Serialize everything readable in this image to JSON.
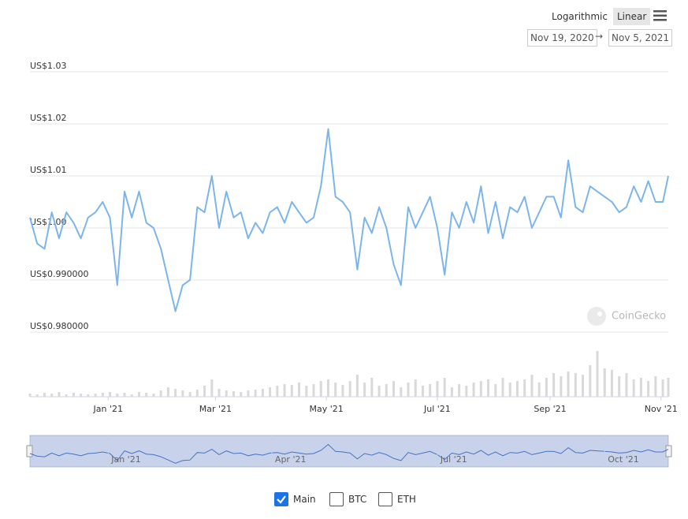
{
  "controls": {
    "scale_options": [
      "Logarithmic",
      "Linear"
    ]
  },
  "range": {
    "from": "Nov 19, 2020",
    "separator": "→",
    "to": "Nov 5, 2021"
  },
  "watermark": "CoinGecko",
  "toggles": [
    {
      "label": "Main",
      "checked": true
    },
    {
      "label": "BTC",
      "checked": false
    },
    {
      "label": "ETH",
      "checked": false
    }
  ],
  "chart_data": {
    "type": "line",
    "log_scale": false,
    "grid": true,
    "color": "#7cb5ec",
    "volume_color": "#d9d9d9",
    "xlim": [
      "2020-11-19",
      "2021-11-05"
    ],
    "ylim": [
      0.98,
      1.03
    ],
    "yticks": [
      {
        "value": 0.98,
        "label": "US$0.980000"
      },
      {
        "value": 0.99,
        "label": "US$0.990000"
      },
      {
        "value": 1.0,
        "label": "US$1.00"
      },
      {
        "value": 1.01,
        "label": "US$1.01"
      },
      {
        "value": 1.02,
        "label": "US$1.02"
      },
      {
        "value": 1.03,
        "label": "US$1.03"
      }
    ],
    "xticks": [
      {
        "value": "2021-01-01",
        "label": "Jan '21"
      },
      {
        "value": "2021-03-01",
        "label": "Mar '21"
      },
      {
        "value": "2021-05-01",
        "label": "May '21"
      },
      {
        "value": "2021-07-01",
        "label": "Jul '21"
      },
      {
        "value": "2021-09-01",
        "label": "Sep '21"
      },
      {
        "value": "2021-11-01",
        "label": "Nov '21"
      }
    ],
    "navigator_ticks": [
      {
        "value": "2021-01-01",
        "label": "Jan '21"
      },
      {
        "value": "2021-04-01",
        "label": "Apr '21"
      },
      {
        "value": "2021-07-01",
        "label": "Jul '21"
      },
      {
        "value": "2021-10-01",
        "label": "Oct '21"
      }
    ],
    "x": [
      "2020-11-19",
      "2020-11-23",
      "2020-11-27",
      "2020-12-01",
      "2020-12-05",
      "2020-12-09",
      "2020-12-13",
      "2020-12-17",
      "2020-12-21",
      "2020-12-25",
      "2020-12-29",
      "2021-01-02",
      "2021-01-06",
      "2021-01-10",
      "2021-01-14",
      "2021-01-18",
      "2021-01-22",
      "2021-01-26",
      "2021-01-30",
      "2021-02-03",
      "2021-02-07",
      "2021-02-11",
      "2021-02-15",
      "2021-02-19",
      "2021-02-23",
      "2021-02-27",
      "2021-03-03",
      "2021-03-07",
      "2021-03-11",
      "2021-03-15",
      "2021-03-19",
      "2021-03-23",
      "2021-03-27",
      "2021-03-31",
      "2021-04-04",
      "2021-04-08",
      "2021-04-12",
      "2021-04-16",
      "2021-04-20",
      "2021-04-24",
      "2021-04-28",
      "2021-05-02",
      "2021-05-06",
      "2021-05-10",
      "2021-05-14",
      "2021-05-18",
      "2021-05-22",
      "2021-05-26",
      "2021-05-30",
      "2021-06-03",
      "2021-06-07",
      "2021-06-11",
      "2021-06-15",
      "2021-06-19",
      "2021-06-23",
      "2021-06-27",
      "2021-07-01",
      "2021-07-05",
      "2021-07-09",
      "2021-07-13",
      "2021-07-17",
      "2021-07-21",
      "2021-07-25",
      "2021-07-29",
      "2021-08-02",
      "2021-08-06",
      "2021-08-10",
      "2021-08-14",
      "2021-08-18",
      "2021-08-22",
      "2021-08-26",
      "2021-08-30",
      "2021-09-03",
      "2021-09-07",
      "2021-09-11",
      "2021-09-15",
      "2021-09-19",
      "2021-09-23",
      "2021-09-27",
      "2021-10-01",
      "2021-10-05",
      "2021-10-09",
      "2021-10-13",
      "2021-10-17",
      "2021-10-21",
      "2021-10-25",
      "2021-10-29",
      "2021-11-02",
      "2021-11-05"
    ],
    "values": [
      1.002,
      0.997,
      0.996,
      1.003,
      0.998,
      1.003,
      1.001,
      0.998,
      1.002,
      1.003,
      1.005,
      1.002,
      0.989,
      1.007,
      1.002,
      1.007,
      1.001,
      1.0,
      0.996,
      0.99,
      0.984,
      0.989,
      0.99,
      1.004,
      1.003,
      1.01,
      1.0,
      1.007,
      1.002,
      1.003,
      0.998,
      1.001,
      0.999,
      1.003,
      1.004,
      1.001,
      1.005,
      1.003,
      1.001,
      1.002,
      1.008,
      1.019,
      1.006,
      1.005,
      1.003,
      0.992,
      1.002,
      0.999,
      1.004,
      1.0,
      0.993,
      0.989,
      1.004,
      1.0,
      1.003,
      1.006,
      1.0,
      0.991,
      1.003,
      1.0,
      1.005,
      1.001,
      1.008,
      0.999,
      1.005,
      0.998,
      1.004,
      1.003,
      1.006,
      1.0,
      1.003,
      1.006,
      1.006,
      1.002,
      1.013,
      1.004,
      1.003,
      1.008,
      1.007,
      1.006,
      1.005,
      1.003,
      1.004,
      1.008,
      1.005,
      1.009,
      1.005,
      1.005,
      1.01
    ],
    "volume": [
      4,
      3,
      5,
      4,
      6,
      3,
      5,
      4,
      3,
      4,
      5,
      6,
      4,
      5,
      3,
      6,
      5,
      4,
      8,
      12,
      10,
      8,
      6,
      9,
      14,
      22,
      10,
      8,
      7,
      6,
      8,
      9,
      10,
      12,
      14,
      16,
      15,
      18,
      14,
      16,
      20,
      22,
      18,
      15,
      20,
      28,
      18,
      24,
      14,
      16,
      20,
      12,
      18,
      22,
      14,
      16,
      20,
      24,
      12,
      16,
      14,
      18,
      20,
      22,
      16,
      24,
      18,
      20,
      22,
      28,
      18,
      24,
      30,
      26,
      32,
      30,
      28,
      40,
      58,
      36,
      34,
      26,
      30,
      22,
      24,
      20,
      26,
      22,
      24
    ]
  }
}
